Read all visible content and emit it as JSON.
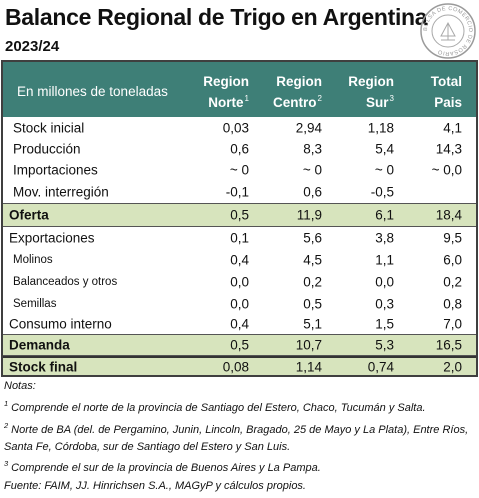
{
  "title": "Balance Regional de Trigo en Argentina",
  "subtitle": "2023/24",
  "seal": {
    "text_top": "BOLSA DE COMERCIO DE ROSARIO",
    "icon": "seal-emblem-icon"
  },
  "table": {
    "header_label": "En millones de toneladas",
    "columns": [
      {
        "line1": "Region",
        "line2": "Norte",
        "sup": "1"
      },
      {
        "line1": "Region",
        "line2": "Centro",
        "sup": "2"
      },
      {
        "line1": "Region",
        "line2": "Sur",
        "sup": "3"
      },
      {
        "line1": "Total",
        "line2": "Pais",
        "sup": ""
      }
    ],
    "rows": [
      {
        "label": "Stock inicial",
        "values": [
          "0,03",
          "2,94",
          "1,18",
          "4,1"
        ]
      },
      {
        "label": "Producción",
        "values": [
          "0,6",
          "8,3",
          "5,4",
          "14,3"
        ]
      },
      {
        "label": "Importaciones",
        "values": [
          "~ 0",
          "~ 0",
          "~ 0",
          "~ 0,0"
        ]
      },
      {
        "label": "Mov. interregión",
        "values": [
          "-0,1",
          "0,6",
          "-0,5",
          ""
        ]
      },
      {
        "label": "Oferta",
        "values": [
          "0,5",
          "11,9",
          "6,1",
          "18,4"
        ]
      },
      {
        "label": "Exportaciones",
        "values": [
          "0,1",
          "5,6",
          "3,8",
          "9,5"
        ]
      },
      {
        "label": "Molinos",
        "values": [
          "0,4",
          "4,5",
          "1,1",
          "6,0"
        ]
      },
      {
        "label": "Balanceados y otros",
        "values": [
          "0,0",
          "0,2",
          "0,0",
          "0,2"
        ]
      },
      {
        "label": "Semillas",
        "values": [
          "0,0",
          "0,5",
          "0,3",
          "0,8"
        ]
      },
      {
        "label": "Consumo interno",
        "values": [
          "0,4",
          "5,1",
          "1,5",
          "7,0"
        ]
      },
      {
        "label": "Demanda",
        "values": [
          "0,5",
          "10,7",
          "5,3",
          "16,5"
        ]
      },
      {
        "label": "Stock final",
        "values": [
          "0,08",
          "1,14",
          "0,74",
          "2,0"
        ]
      }
    ]
  },
  "notes": {
    "heading": "Notas:",
    "note1_num": "1",
    "note1": "Comprende el norte de la provincia de Santiago del Estero, Chaco, Tucumán y Salta.",
    "note2_num": "2",
    "note2": "Norte de BA (del. de Pergamino, Junin, Lincoln, Bragado, 25 de Mayo y La Plata), Entre Ríos, Santa Fe, Córdoba, sur de Santiago del Estero y San Luis.",
    "note3_num": "3",
    "note3": "Comprende el sur de la provincia de Buenos Aires y La Pampa.",
    "source": "Fuente: FAIM, JJ. Hinrichsen S.A., MAGyP y cálculos propios."
  },
  "colors": {
    "header_bg": "#3e7f77",
    "highlight_bg": "#d7e4bd"
  }
}
